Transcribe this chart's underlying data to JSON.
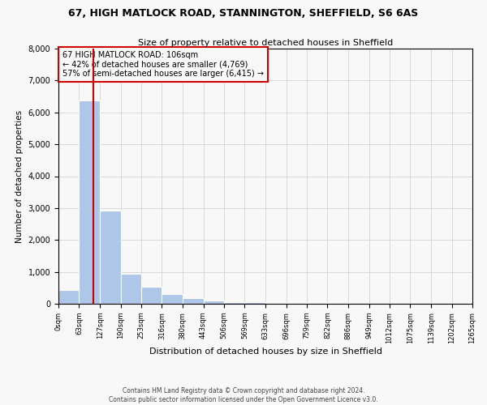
{
  "title_line1": "67, HIGH MATLOCK ROAD, STANNINGTON, SHEFFIELD, S6 6AS",
  "title_line2": "Size of property relative to detached houses in Sheffield",
  "xlabel": "Distribution of detached houses by size in Sheffield",
  "ylabel": "Number of detached properties",
  "footnote": "Contains HM Land Registry data © Crown copyright and database right 2024.\nContains public sector information licensed under the Open Government Licence v3.0.",
  "bar_color": "#aec6e8",
  "bar_edge_color": "#ffffff",
  "property_size": 106,
  "property_label": "67 HIGH MATLOCK ROAD: 106sqm",
  "annotation_line2": "← 42% of detached houses are smaller (4,769)",
  "annotation_line3": "57% of semi-detached houses are larger (6,415) →",
  "vline_color": "#cc0000",
  "annotation_box_edge_color": "#cc0000",
  "bins": [
    0,
    63,
    127,
    190,
    253,
    316,
    380,
    443,
    506,
    569,
    633,
    696,
    759,
    822,
    886,
    949,
    1012,
    1075,
    1139,
    1202,
    1265
  ],
  "counts": [
    430,
    6380,
    2920,
    950,
    530,
    300,
    180,
    100,
    60,
    40,
    30,
    25,
    20,
    15,
    12,
    8,
    5,
    4,
    3,
    2
  ],
  "ylim": [
    0,
    8000
  ],
  "yticks": [
    0,
    1000,
    2000,
    3000,
    4000,
    5000,
    6000,
    7000,
    8000
  ],
  "grid_color": "#cccccc",
  "background_color": "#f8f8f8"
}
